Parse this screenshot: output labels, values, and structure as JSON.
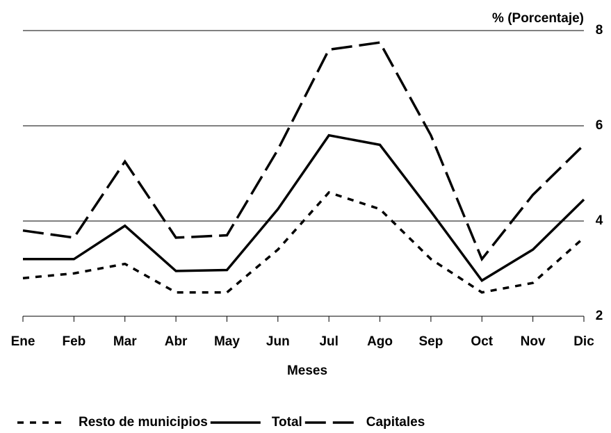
{
  "chart_data": {
    "type": "line",
    "y_label": "% (Porcentaje)",
    "x_label": "Meses",
    "categories": [
      "Ene",
      "Feb",
      "Mar",
      "Abr",
      "May",
      "Jun",
      "Jul",
      "Ago",
      "Sep",
      "Oct",
      "Nov",
      "Dic"
    ],
    "series": [
      {
        "name": "Resto de municipios",
        "color": "#000000",
        "dash": "dotted",
        "values": [
          2.8,
          2.9,
          3.1,
          2.5,
          2.5,
          3.4,
          4.6,
          4.25,
          3.2,
          2.5,
          2.7,
          3.65
        ]
      },
      {
        "name": "Total",
        "color": "#000000",
        "dash": "solid",
        "values": [
          3.2,
          3.2,
          3.9,
          2.95,
          2.97,
          4.25,
          5.8,
          5.6,
          4.2,
          2.75,
          3.4,
          4.45
        ]
      },
      {
        "name": "Capitales",
        "color": "#000000",
        "dash": "dashed",
        "values": [
          3.8,
          3.65,
          5.25,
          3.65,
          3.7,
          5.5,
          7.6,
          7.75,
          5.8,
          3.2,
          4.55,
          5.6
        ]
      }
    ],
    "ylim": [
      2,
      8
    ],
    "yticks": [
      2,
      4,
      6,
      8
    ],
    "grid": true,
    "y_axis_side": "right",
    "legend": "bottom"
  }
}
